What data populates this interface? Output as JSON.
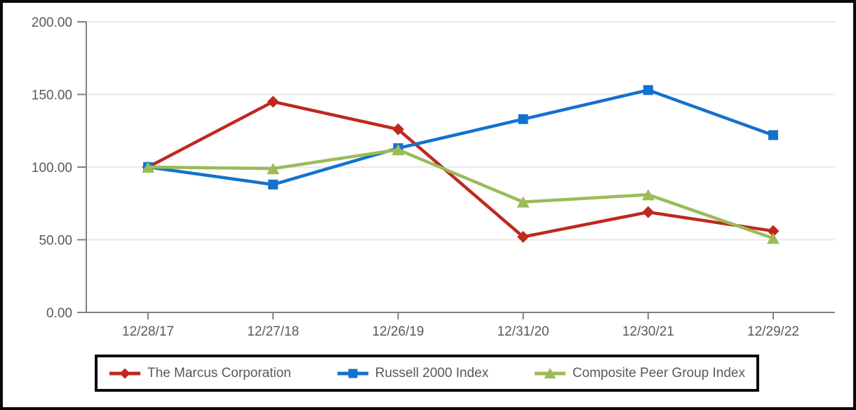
{
  "chart_data": {
    "type": "line",
    "title": "",
    "categories": [
      "12/28/17",
      "12/27/18",
      "12/26/19",
      "12/31/20",
      "12/30/21",
      "12/29/22"
    ],
    "series": [
      {
        "name": "The Marcus Corporation",
        "marker": "diamond",
        "color": "#C0281E",
        "values": [
          100.0,
          145.0,
          126.0,
          52.0,
          69.0,
          56.0
        ]
      },
      {
        "name": "Russell 2000 Index",
        "marker": "square",
        "color": "#1471CE",
        "values": [
          100.0,
          88.0,
          113.0,
          133.0,
          153.0,
          122.0
        ]
      },
      {
        "name": "Composite Peer Group Index",
        "marker": "triangle",
        "color": "#9BBB59",
        "values": [
          100.0,
          99.0,
          112.0,
          76.0,
          81.0,
          51.0
        ]
      }
    ],
    "ylim": [
      0,
      200
    ],
    "yticks": [
      0,
      50,
      100,
      150,
      200
    ],
    "ytick_labels": [
      "0.00",
      "50.00",
      "100.00",
      "150.00",
      "200.00"
    ],
    "xlabel": "",
    "ylabel": "",
    "grid": "horizontal",
    "legend_position": "bottom-box",
    "colors": {
      "axis": "#808080",
      "tick_labels": "#595959",
      "gridline": "#E9E9E9",
      "frame": "#0A0A0A",
      "background": "#FFFFFF"
    }
  }
}
